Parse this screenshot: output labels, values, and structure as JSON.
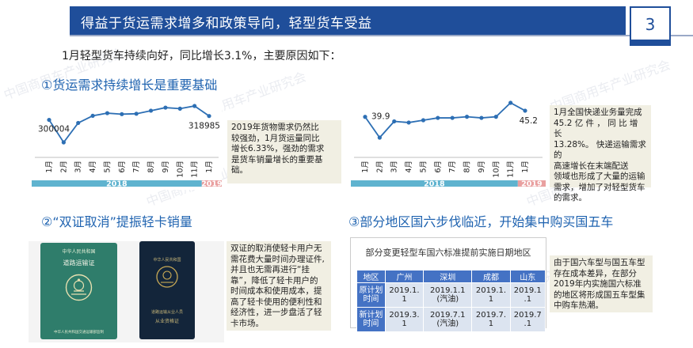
{
  "header": {
    "title": "得益于货运需求增多和政策导向，轻型货车受益",
    "page_number": "3"
  },
  "intro": "1月轻型货车持续向好，同比增长3.1%，主要原因如下：",
  "watermark": "中国商用车产业研究会",
  "section1": {
    "title": "①货运需求持续增长是重要基础",
    "note": [
      "2019年货物需求仍然比",
      "较强劲，1月货运量同比",
      "增长6.33%，强劲的需求",
      "是货车销量增长的重要基",
      "础。"
    ]
  },
  "section2": {
    "note": [
      "1月全国快递业务量完成",
      "45.2 亿 件 ， 同 比 增 长",
      "13.28%。 快递运输需求的",
      "高速增长在末端配送",
      "领域也形成了大量的运输",
      "需求，增加了对轻型货车",
      "的需求。"
    ]
  },
  "section3": {
    "title": "②“双证取消”提振轻卡销量",
    "note": [
      "双证的取消使轻卡用户无",
      "需花费大量时间办理证件,",
      "并且也无需再进行“挂",
      "靠”，降低了轻卡用户的",
      "时间成本和使用成本，提",
      "高了轻卡使用的便利性和",
      "经济性，进一步盘活了轻",
      "卡市场。"
    ],
    "cert_left": {
      "emblem_text": "中华人民共和国",
      "title": "道路运输证",
      "footer": "中华人民共和国交通运输部监制"
    },
    "cert_right": {
      "emblem_text": "中华人民共和国",
      "title": "道路运输从业人员",
      "subtitle": "从业资格证"
    }
  },
  "section4": {
    "title": "③部分地区国六步伐临近，开始集中购买国五车",
    "note": [
      "由于国六车型与国五车型",
      "存在成本差异，在部分",
      "2019年内实施国六标准",
      "的地区将形成国五车型集",
      "中购车热潮。"
    ],
    "table": {
      "caption": "部分变更轻型车国六标准提前实施日期地区",
      "headers": [
        "地区",
        "广州",
        "深圳",
        "成都",
        "山东"
      ],
      "rows": [
        {
          "label": [
            "原计划",
            "时间"
          ],
          "cells": [
            [
              "2019.1.",
              "1"
            ],
            [
              "2019.1.1",
              "(汽油)"
            ],
            [
              "2019.1.",
              "1"
            ],
            [
              "2019.1",
              ".1"
            ]
          ]
        },
        {
          "label": [
            "新计划",
            "时间"
          ],
          "cells": [
            [
              "2019.3.",
              "1"
            ],
            [
              "2019.7.1",
              "(汽油)"
            ],
            [
              "2019.7.",
              "1"
            ],
            [
              "2019.7",
              ".1"
            ]
          ]
        }
      ]
    }
  },
  "chart_data": [
    {
      "type": "line",
      "categories": [
        "1月",
        "2月",
        "3月",
        "4月",
        "5月",
        "6月",
        "7月",
        "8月",
        "9月",
        "10月",
        "11月",
        "1月"
      ],
      "series": [
        {
          "values": [
            300004,
            190000,
            285000,
            320000,
            333000,
            328000,
            330000,
            345000,
            360000,
            355000,
            368000,
            318985
          ]
        }
      ],
      "data_labels": {
        "first": "300004",
        "last": "318985"
      },
      "year_bands": [
        {
          "label": "2018",
          "color": "#5fb3cf",
          "from": 0,
          "to": 11
        },
        {
          "label": "2019",
          "color": "#e9a0a0",
          "from": 11,
          "to": 12
        }
      ],
      "line_color": "#2d6fb4"
    },
    {
      "type": "line",
      "categories": [
        "1月",
        "2月",
        "3月",
        "4月",
        "5月",
        "6月",
        "7月",
        "8月",
        "9月",
        "10月",
        "11月",
        "1月"
      ],
      "series": [
        {
          "values": [
            39.9,
            22,
            36,
            35,
            37,
            39,
            39,
            40,
            39,
            40,
            52,
            45.2
          ]
        }
      ],
      "data_labels": {
        "first": "39.9",
        "last": "45.2"
      },
      "year_bands": [
        {
          "label": "2018",
          "color": "#5fb3cf",
          "from": 0,
          "to": 11
        },
        {
          "label": "2019",
          "color": "#e9a0a0",
          "from": 11,
          "to": 12
        }
      ],
      "line_color": "#2d6fb4"
    }
  ]
}
